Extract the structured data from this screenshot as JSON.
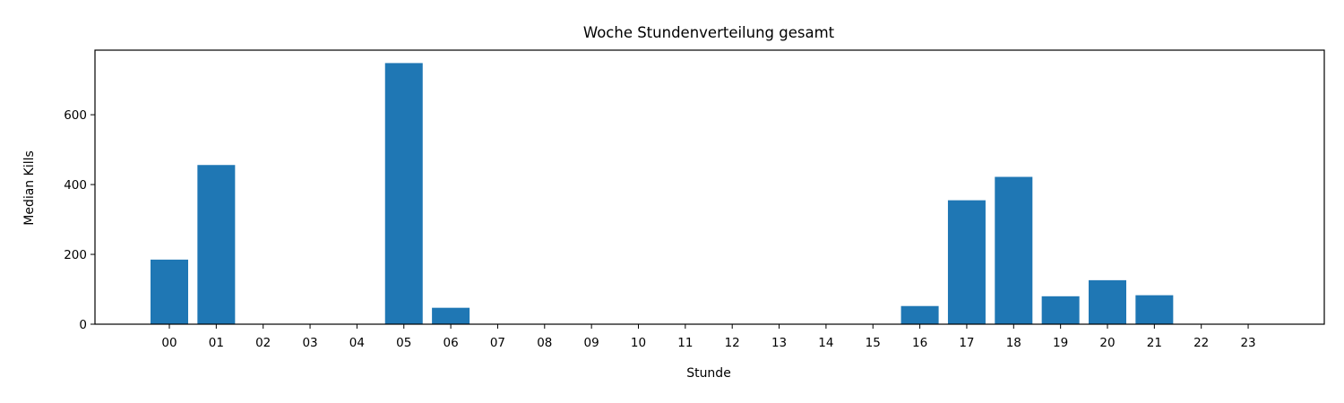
{
  "chart_data": {
    "type": "bar",
    "title": "Woche Stundenverteilung gesamt",
    "xlabel": "Stunde",
    "ylabel": "Median Kills",
    "categories": [
      "00",
      "01",
      "02",
      "03",
      "04",
      "05",
      "06",
      "07",
      "08",
      "09",
      "10",
      "11",
      "12",
      "13",
      "14",
      "15",
      "16",
      "17",
      "18",
      "19",
      "20",
      "21",
      "22",
      "23"
    ],
    "values": [
      185,
      456,
      0,
      0,
      0,
      748,
      47,
      0,
      0,
      0,
      0,
      0,
      0,
      0,
      0,
      0,
      52,
      355,
      422,
      80,
      126,
      83,
      0,
      0
    ],
    "yticks": [
      0,
      200,
      400,
      600
    ],
    "ylim": [
      0,
      785
    ],
    "bar_color": "#1f77b4",
    "grid": false,
    "legend": "none"
  }
}
